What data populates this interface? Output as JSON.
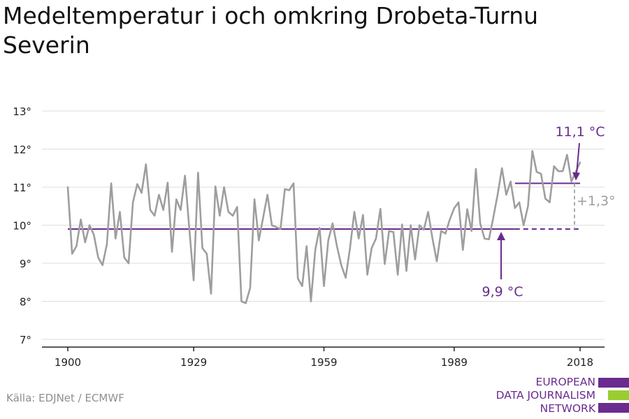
{
  "title_lines": [
    "Medeltemperatur i och omkring Drobeta-Turnu",
    "Severin"
  ],
  "source": "Källa: EDJNet / ECMWF",
  "logo": {
    "lines": [
      "EUROPEAN",
      "DATA JOURNALISM",
      "NETWORK"
    ],
    "colors": [
      "#6a2c8e",
      "#9acd32",
      "#6a2c8e"
    ]
  },
  "chart_data": {
    "type": "line",
    "title": "Medeltemperatur i och omkring Drobeta-Turnu Severin",
    "xlabel": "",
    "ylabel": "",
    "xlim": [
      1900,
      2018
    ],
    "ylim": [
      7,
      13
    ],
    "xticks": [
      1900,
      1929,
      1959,
      1989,
      2018
    ],
    "yticks": [
      7,
      8,
      9,
      10,
      11,
      12,
      13
    ],
    "ytick_suffix": "°",
    "grid": true,
    "series": [
      {
        "color": "#9e9e9e",
        "x": [
          1900,
          1901,
          1902,
          1903,
          1904,
          1905,
          1906,
          1907,
          1908,
          1909,
          1910,
          1911,
          1912,
          1913,
          1914,
          1915,
          1916,
          1917,
          1918,
          1919,
          1920,
          1921,
          1922,
          1923,
          1924,
          1925,
          1926,
          1927,
          1928,
          1929,
          1930,
          1931,
          1932,
          1933,
          1934,
          1935,
          1936,
          1937,
          1938,
          1939,
          1940,
          1941,
          1942,
          1943,
          1944,
          1945,
          1946,
          1947,
          1948,
          1949,
          1950,
          1951,
          1952,
          1953,
          1954,
          1955,
          1956,
          1957,
          1958,
          1959,
          1960,
          1961,
          1962,
          1963,
          1964,
          1965,
          1966,
          1967,
          1968,
          1969,
          1970,
          1971,
          1972,
          1973,
          1974,
          1975,
          1976,
          1977,
          1978,
          1979,
          1980,
          1981,
          1982,
          1983,
          1984,
          1985,
          1986,
          1987,
          1988,
          1989,
          1990,
          1991,
          1992,
          1993,
          1994,
          1995,
          1996,
          1997,
          1998,
          1999,
          2000,
          2001,
          2002,
          2003,
          2004,
          2005,
          2006,
          2007,
          2008,
          2009,
          2010,
          2011,
          2012,
          2013,
          2014,
          2015,
          2016,
          2017,
          2018
        ],
        "y": [
          11.0,
          9.25,
          9.45,
          10.15,
          9.55,
          10.0,
          9.75,
          9.15,
          8.95,
          9.5,
          11.1,
          9.65,
          10.35,
          9.15,
          9.0,
          10.6,
          11.08,
          10.85,
          11.6,
          10.4,
          10.25,
          10.8,
          10.4,
          11.12,
          9.3,
          10.68,
          10.4,
          11.3,
          9.9,
          8.55,
          11.38,
          9.4,
          9.25,
          8.2,
          11.02,
          10.25,
          11.0,
          10.35,
          10.25,
          10.48,
          8.0,
          7.95,
          8.35,
          10.68,
          9.6,
          10.2,
          10.8,
          10.0,
          9.95,
          9.9,
          10.95,
          10.92,
          11.1,
          8.6,
          8.4,
          9.45,
          8.0,
          9.35,
          9.93,
          8.4,
          9.6,
          10.05,
          9.45,
          8.95,
          8.62,
          9.4,
          10.35,
          9.65,
          10.27,
          8.7,
          9.4,
          9.65,
          10.43,
          8.98,
          9.85,
          9.82,
          8.7,
          10.02,
          8.8,
          10.0,
          9.1,
          10.0,
          9.88,
          10.35,
          9.65,
          9.05,
          9.85,
          9.78,
          10.15,
          10.45,
          10.6,
          9.35,
          10.42,
          9.85,
          11.48,
          10.05,
          9.65,
          9.63,
          10.2,
          10.8,
          11.5,
          10.8,
          11.15,
          10.45,
          10.6,
          10.0,
          10.5,
          11.95,
          11.4,
          11.35,
          10.7,
          10.6,
          11.55,
          11.42,
          11.42,
          11.85,
          11.15,
          11.4,
          11.65
        ]
      }
    ],
    "reference_lines": [
      {
        "value": 9.9,
        "x_start": 1900,
        "x_end": 2018,
        "dashed_from": 2003,
        "color": "#6a2c8e"
      },
      {
        "value": 11.1,
        "x_start": 2003,
        "x_end": 2018,
        "color": "#6a2c8e"
      }
    ],
    "annotations": [
      {
        "text": "11,1 °C",
        "color": "#6a2c8e"
      },
      {
        "text": "9,9 °C",
        "color": "#6a2c8e"
      },
      {
        "text": "+1,3°",
        "color": "#9e9e9e"
      }
    ]
  }
}
